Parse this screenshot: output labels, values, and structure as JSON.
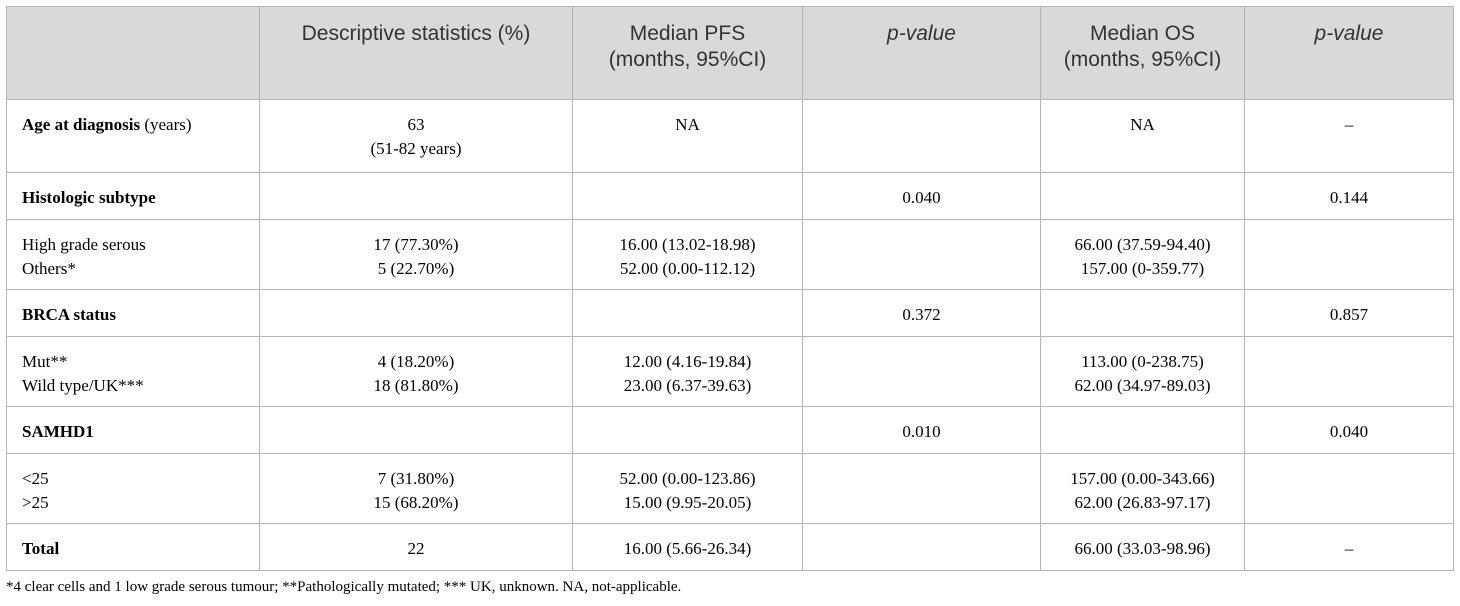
{
  "headers": {
    "col0": "",
    "col1": "Descriptive statistics (%)",
    "col2_line1": "Median PFS",
    "col2_line2": "(months, 95%CI)",
    "col3": "p-value",
    "col4_line1": "Median OS",
    "col4_line2": "(months, 95%CI)",
    "col5": "p-value"
  },
  "rows": {
    "age": {
      "label_bold": "Age at diagnosis",
      "label_rest": " (years)",
      "desc_line1": "63",
      "desc_line2": "(51-82 years)",
      "pfs": "NA",
      "p1": "",
      "os": "NA",
      "p2": "–"
    },
    "histologic": {
      "label": "Histologic subtype",
      "p1": "0.040",
      "p2": "0.144",
      "sub": [
        {
          "label": "High grade serous",
          "desc": "17 (77.30%)",
          "pfs": "16.00 (13.02-18.98)",
          "os": "66.00 (37.59-94.40)"
        },
        {
          "label": "Others*",
          "desc": "5 (22.70%)",
          "pfs": "52.00 (0.00-112.12)",
          "os": "157.00 (0-359.77)"
        }
      ]
    },
    "brca": {
      "label": "BRCA status",
      "p1": "0.372",
      "p2": "0.857",
      "sub": [
        {
          "label": "Mut**",
          "desc": "4 (18.20%)",
          "pfs": "12.00 (4.16-19.84)",
          "os": "113.00 (0-238.75)"
        },
        {
          "label": "Wild type/UK***",
          "desc": "18 (81.80%)",
          "pfs": "23.00 (6.37-39.63)",
          "os": "62.00 (34.97-89.03)"
        }
      ]
    },
    "samhd1": {
      "label": "SAMHD1",
      "p1": "0.010",
      "p2": "0.040",
      "sub": [
        {
          "label": "<25",
          "desc": "7 (31.80%)",
          "pfs": "52.00 (0.00-123.86)",
          "os": "157.00 (0.00-343.66)"
        },
        {
          "label": ">25",
          "desc": "15 (68.20%)",
          "pfs": "15.00 (9.95-20.05)",
          "os": "62.00 (26.83-97.17)"
        }
      ]
    },
    "total": {
      "label": "Total",
      "desc": "22",
      "pfs": "16.00 (5.66-26.34)",
      "p1": "",
      "os": "66.00 (33.03-98.96)",
      "p2": "–"
    }
  },
  "footnote": "*4 clear cells and 1 low grade serous tumour; **Pathologically mutated; *** UK, unknown. NA, not-applicable."
}
